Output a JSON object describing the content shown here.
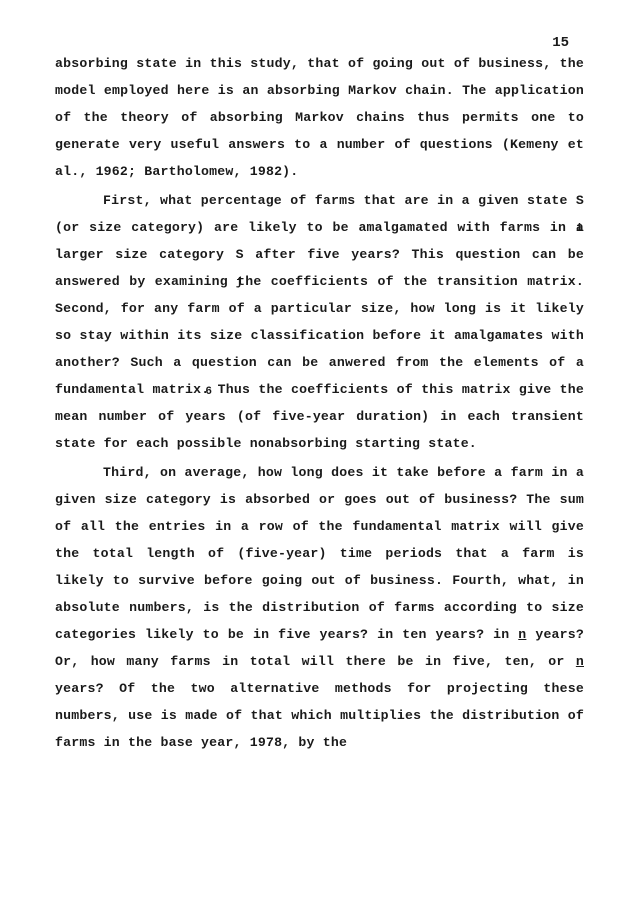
{
  "page_number": "15",
  "p1_a": "absorbing state in this study,  that of going out of business, the  model  employed here is an absorbing  Markov  chain.  The application  of  the  theory of absorbing Markov  chains  thus permits  one  to generate very useful answers to a  number  of questions (Kemeny et al., 1962; Bartholomew, 1982).",
  "p2_a": "First, what percentage of farms that are in a given state S",
  "p2_sub_i": "i",
  "p2_b": "  (or size category) are likely to be amalgamated with  farms in  a larger size category S",
  "p2_sub_j": "j",
  "p2_c": "  after five years?  This question can  be answered by examining the coefficients of the  transi­tion matrix.  Second,  for any farm of a particular size,  how long  is  it  likely so stay within  its  size  classification before  it amalgamates with another?  Such a question  can  be anwered  from the elements of a fundamental matrix.",
  "p2_sup_6": "6",
  "p2_d": " Thus  the coefficients  of this matrix give the mean number of years (of five-year duration) in each transient state for each possible nonabsorbing starting state.",
  "p3_a": "Third, on average, how long does it take before a farm in a given size category is absorbed or goes out of business? The sum of all the entries in a row of the fundamental matrix will give the total length of (five-year) time periods that a  farm is  likely  to survive before going out of  business.  Fourth, what,  in  absolute  numbers,  is the  distribution  of  farms according  to size categories likely to be in five  years?  in ten years?  in ",
  "p3_n1": "n",
  "p3_b": " years? Or, how many farms in total will there be in five,  ten,  or ",
  "p3_n2": "n",
  "p3_c": " years?  Of the two alternative methods for projecting these numbers, use is made of that which multi­plies the distribution of farms in the base year, 1978, by the"
}
